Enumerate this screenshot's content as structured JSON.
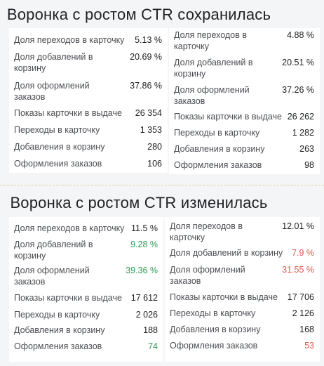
{
  "sections": [
    {
      "title": "Воронка с ростом CTR сохранилась",
      "cards": [
        {
          "rows": [
            {
              "label": "Доля переходов в карточку",
              "value": "5.13 %",
              "tone": ""
            },
            {
              "label": "Доля добавлений в корзину",
              "value": "20.69 %",
              "tone": ""
            },
            {
              "label": "Доля оформлений заказов",
              "value": "37.86 %",
              "tone": ""
            },
            {
              "label": "Показы карточки в выдаче",
              "value": "26 354",
              "tone": ""
            },
            {
              "label": "Переходы в карточку",
              "value": "1 353",
              "tone": ""
            },
            {
              "label": "Добавления в корзину",
              "value": "280",
              "tone": ""
            },
            {
              "label": "Оформления заказов",
              "value": "106",
              "tone": ""
            }
          ]
        },
        {
          "rows": [
            {
              "label": "Доля переходов в карточку",
              "value": "4.88 %",
              "tone": ""
            },
            {
              "label": "Доля добавлений в корзину",
              "value": "20.51 %",
              "tone": ""
            },
            {
              "label": "Доля оформлений заказов",
              "value": "37.26 %",
              "tone": ""
            },
            {
              "label": "Показы карточки в выдаче",
              "value": "26 262",
              "tone": ""
            },
            {
              "label": "Переходы в карточку",
              "value": "1 282",
              "tone": ""
            },
            {
              "label": "Добавления в корзину",
              "value": "263",
              "tone": ""
            },
            {
              "label": "Оформления заказов",
              "value": "98",
              "tone": ""
            }
          ]
        }
      ]
    },
    {
      "title": "Воронка с ростом CTR изменилась",
      "cards": [
        {
          "rows": [
            {
              "label": "Доля переходов в карточку",
              "value": "11.5 %",
              "tone": ""
            },
            {
              "label": "Доля добавлений в корзину",
              "value": "9.28 %",
              "tone": "green"
            },
            {
              "label": "Доля оформлений заказов",
              "value": "39.36 %",
              "tone": "green"
            },
            {
              "label": "Показы карточки в выдаче",
              "value": "17 612",
              "tone": ""
            },
            {
              "label": "Переходы в карточку",
              "value": "2 026",
              "tone": ""
            },
            {
              "label": "Добавления в корзину",
              "value": "188",
              "tone": ""
            },
            {
              "label": "Оформления заказов",
              "value": "74",
              "tone": "green"
            }
          ]
        },
        {
          "rows": [
            {
              "label": "Доля переходов в карточку",
              "value": "12.01 %",
              "tone": ""
            },
            {
              "label": "Доля добавлений в корзину",
              "value": "7.9 %",
              "tone": "red"
            },
            {
              "label": "Доля оформлений заказов",
              "value": "31.55 %",
              "tone": "red"
            },
            {
              "label": "Показы карточки в выдаче",
              "value": "17 706",
              "tone": ""
            },
            {
              "label": "Переходы в карточку",
              "value": "2 126",
              "tone": ""
            },
            {
              "label": "Добавления в корзину",
              "value": "168",
              "tone": ""
            },
            {
              "label": "Оформления заказов",
              "value": "53",
              "tone": "red"
            }
          ]
        }
      ]
    }
  ],
  "colors": {
    "positive": "#2f9a55",
    "negative": "#e05a52"
  }
}
